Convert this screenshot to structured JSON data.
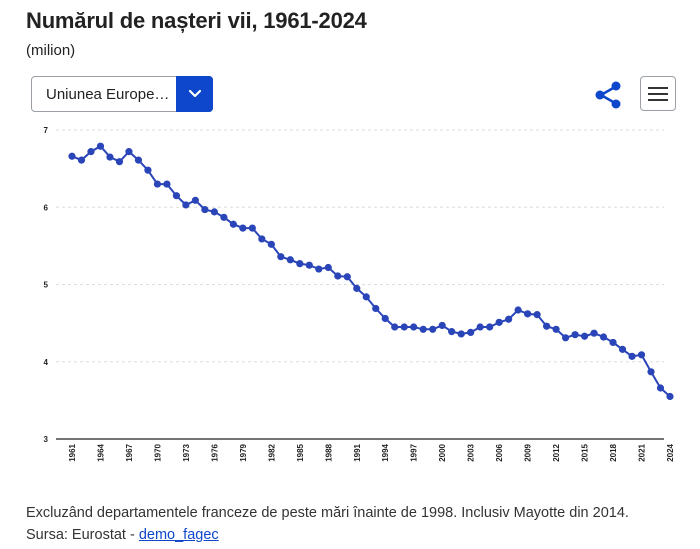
{
  "header": {
    "title": "Numărul de nașteri vii, 1961-2024",
    "unit": "(milion)"
  },
  "controls": {
    "geo_selected": "Uniunea Europe…",
    "share_icon": "share-icon",
    "menu_icon": "hamburger-menu-icon",
    "dropdown_icon": "chevron-down-icon"
  },
  "colors": {
    "accent": "#0e47cb",
    "series": "#2a45b8",
    "grid": "#dddddd",
    "axis": "#222222"
  },
  "chart_data": {
    "type": "line",
    "ylim": [
      3,
      7
    ],
    "yticks": [
      3,
      4,
      5,
      6,
      7
    ],
    "grid": "horizontal dotted",
    "xtick_labels": [
      "1961",
      "1964",
      "1967",
      "1970",
      "1973",
      "1976",
      "1979",
      "1982",
      "1985",
      "1988",
      "1991",
      "1994",
      "1997",
      "2000",
      "2003",
      "2006",
      "2009",
      "2012",
      "2015",
      "2018",
      "2021",
      "2024"
    ],
    "x": [
      1961,
      1962,
      1963,
      1964,
      1965,
      1966,
      1967,
      1968,
      1969,
      1970,
      1971,
      1972,
      1973,
      1974,
      1975,
      1976,
      1977,
      1978,
      1979,
      1980,
      1981,
      1982,
      1983,
      1984,
      1985,
      1986,
      1987,
      1988,
      1989,
      1990,
      1991,
      1992,
      1993,
      1994,
      1995,
      1996,
      1997,
      1998,
      1999,
      2000,
      2001,
      2002,
      2003,
      2004,
      2005,
      2006,
      2007,
      2008,
      2009,
      2010,
      2011,
      2012,
      2013,
      2014,
      2015,
      2016,
      2017,
      2018,
      2019,
      2020,
      2021,
      2022,
      2023,
      2024
    ],
    "values": [
      6.66,
      6.61,
      6.72,
      6.79,
      6.65,
      6.59,
      6.72,
      6.61,
      6.48,
      6.3,
      6.3,
      6.15,
      6.03,
      6.09,
      5.97,
      5.94,
      5.87,
      5.78,
      5.73,
      5.73,
      5.59,
      5.52,
      5.36,
      5.32,
      5.27,
      5.25,
      5.2,
      5.22,
      5.11,
      5.1,
      4.95,
      4.84,
      4.69,
      4.56,
      4.45,
      4.45,
      4.45,
      4.42,
      4.42,
      4.47,
      4.39,
      4.36,
      4.38,
      4.45,
      4.45,
      4.51,
      4.55,
      4.67,
      4.62,
      4.61,
      4.46,
      4.42,
      4.31,
      4.35,
      4.33,
      4.37,
      4.32,
      4.25,
      4.16,
      4.07,
      4.09,
      3.87,
      3.66,
      3.55
    ]
  },
  "footer": {
    "note": "Excluzând departamentele franceze de peste mări înainte de 1998. Inclusiv Mayotte din 2014.",
    "source_prefix": "Sursa: Eurostat - ",
    "source_link": "demo_fagec"
  }
}
